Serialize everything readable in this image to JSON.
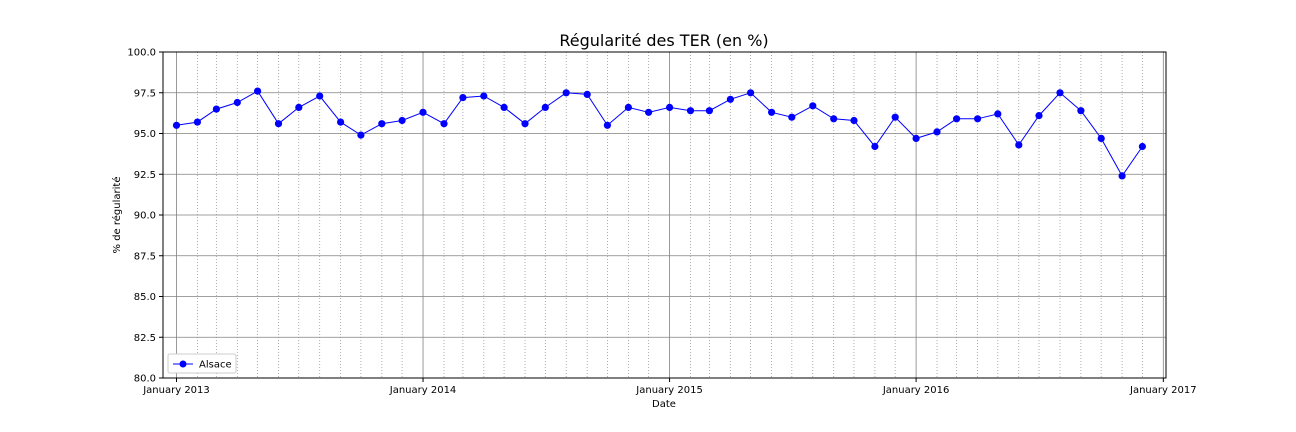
{
  "chart_data": {
    "type": "line",
    "title": "Régularité des TER (en %)",
    "xlabel": "Date",
    "ylabel": "% de régularité",
    "ylim": [
      80.0,
      100.0
    ],
    "yticks": [
      "80.0",
      "82.5",
      "85.0",
      "87.5",
      "90.0",
      "92.5",
      "95.0",
      "97.5",
      "100.0"
    ],
    "xlim": [
      "2012-12-12",
      "2017-01-05"
    ],
    "xticks": [
      {
        "date": "2013-01-01",
        "label": "January 2013"
      },
      {
        "date": "2014-01-01",
        "label": "January 2014"
      },
      {
        "date": "2015-01-01",
        "label": "January 2015"
      },
      {
        "date": "2016-01-01",
        "label": "January 2016"
      },
      {
        "date": "2017-01-01",
        "label": "January 2017"
      }
    ],
    "grid": {
      "major": true,
      "minor_x": "monthly, dotted"
    },
    "legend": "lower left",
    "series": [
      {
        "name": "Alsace",
        "color": "#0000ff",
        "marker": "circle",
        "x": [
          "2013-01-01",
          "2013-02-01",
          "2013-03-01",
          "2013-04-01",
          "2013-05-01",
          "2013-06-01",
          "2013-07-01",
          "2013-08-01",
          "2013-09-01",
          "2013-10-01",
          "2013-11-01",
          "2013-12-01",
          "2014-01-01",
          "2014-02-01",
          "2014-03-01",
          "2014-04-01",
          "2014-05-01",
          "2014-06-01",
          "2014-07-01",
          "2014-08-01",
          "2014-09-01",
          "2014-10-01",
          "2014-11-01",
          "2014-12-01",
          "2015-01-01",
          "2015-02-01",
          "2015-03-01",
          "2015-04-01",
          "2015-05-01",
          "2015-06-01",
          "2015-07-01",
          "2015-08-01",
          "2015-09-01",
          "2015-10-01",
          "2015-11-01",
          "2015-12-01",
          "2016-01-01",
          "2016-02-01",
          "2016-03-01",
          "2016-04-01",
          "2016-05-01",
          "2016-06-01",
          "2016-07-01",
          "2016-08-01",
          "2016-09-01",
          "2016-10-01",
          "2016-11-01",
          "2016-12-01"
        ],
        "values": [
          95.5,
          95.7,
          96.5,
          96.9,
          97.6,
          95.6,
          96.6,
          97.3,
          95.7,
          94.9,
          95.6,
          95.8,
          96.3,
          95.6,
          97.2,
          97.3,
          96.6,
          95.6,
          96.6,
          97.5,
          97.4,
          95.5,
          96.6,
          96.3,
          96.6,
          96.4,
          96.4,
          97.1,
          97.5,
          96.3,
          96.0,
          96.7,
          95.9,
          95.8,
          94.2,
          96.0,
          94.7,
          95.1,
          95.9,
          95.9,
          96.2,
          94.3,
          96.1,
          97.5,
          96.4,
          94.7,
          92.4,
          94.2
        ]
      }
    ]
  }
}
